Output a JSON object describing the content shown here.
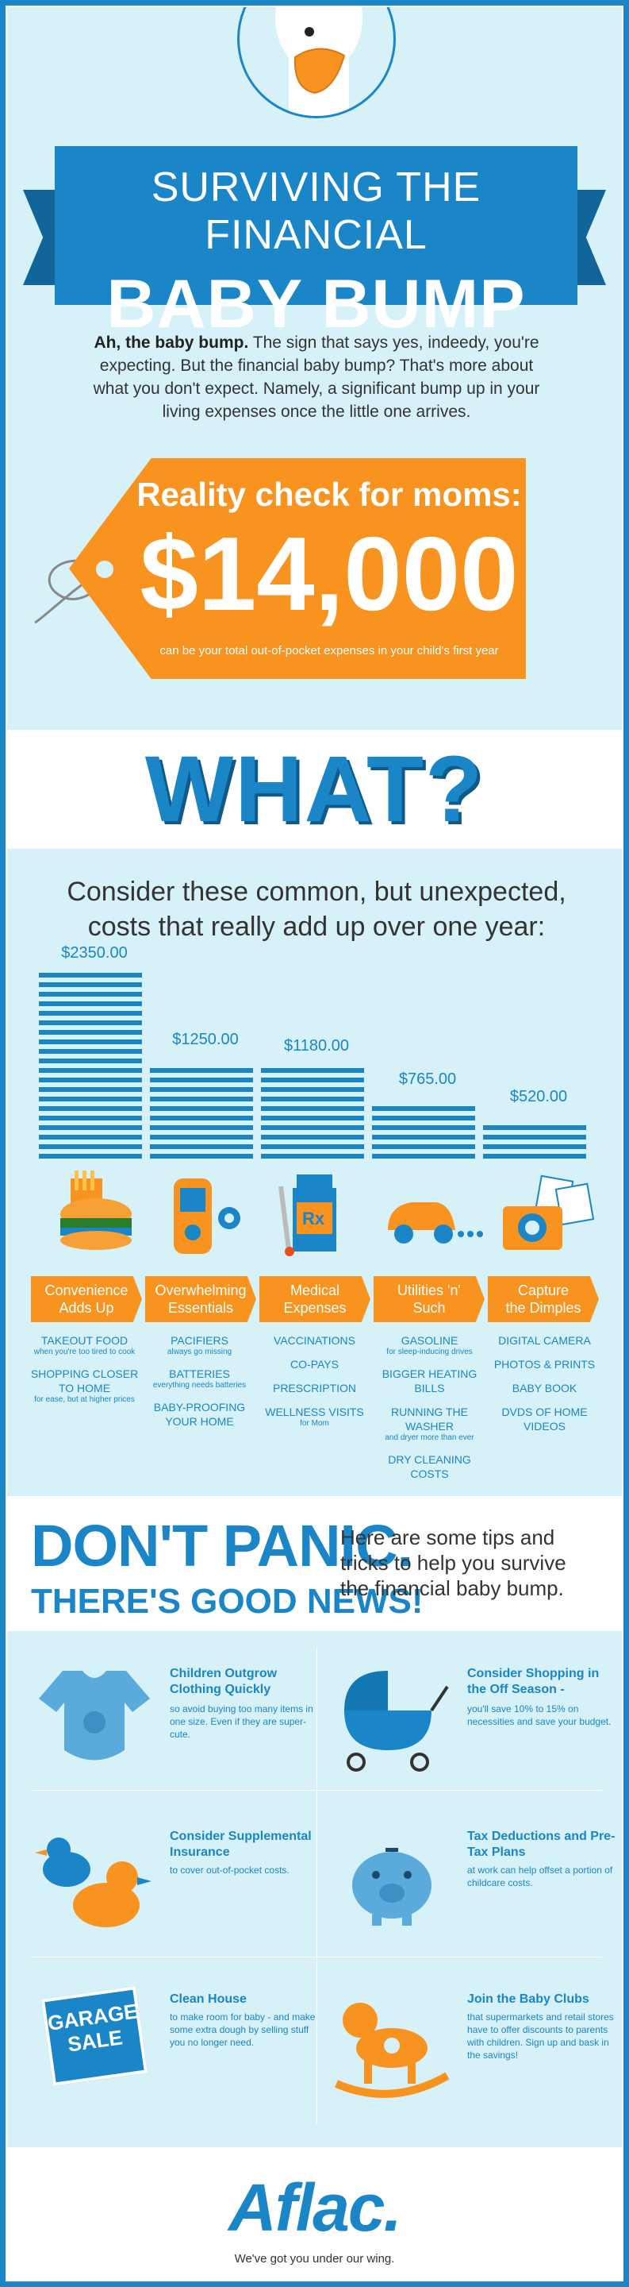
{
  "hero": {
    "title_line1": "SURVIVING THE FINANCIAL",
    "title_line2": "BABY BUMP",
    "intro_bold": "Ah, the baby bump.",
    "intro_rest": " The sign that says yes, indeedy, you're expecting. But the financial baby bump? That's more about what you don't expect. Namely, a significant bump up in your living expenses once the little one arrives."
  },
  "tag": {
    "heading": "Reality check for moms:",
    "amount": "$14,000",
    "subtext": "can be your total out-of-pocket expenses in your child's first year"
  },
  "what": {
    "label": "WHAT?"
  },
  "consider": {
    "text": "Consider these common, but unexpected, costs that really add up over one year:"
  },
  "chart_data": {
    "type": "bar",
    "categories": [
      "Convenience Adds Up",
      "Overwhelming Essentials",
      "Medical Expenses",
      "Utilities 'n' Such",
      "Capture the Dimples"
    ],
    "values": [
      2350,
      1250,
      1180,
      765,
      520
    ],
    "labels": [
      "$2350.00",
      "$1250.00",
      "$1180.00",
      "$765.00",
      "$520.00"
    ]
  },
  "categories": [
    {
      "name1": "Convenience",
      "name2": "Adds Up",
      "items": [
        {
          "t": "TAKEOUT FOOD",
          "s": "when you're too tired to cook"
        },
        {
          "t": "SHOPPING CLOSER TO HOME",
          "s": "for ease, but at higher prices"
        }
      ]
    },
    {
      "name1": "Overwhelming",
      "name2": "Essentials",
      "items": [
        {
          "t": "PACIFIERS",
          "s": "always go missing"
        },
        {
          "t": "BATTERIES",
          "s": "everything needs batteries"
        },
        {
          "t": "BABY-PROOFING YOUR HOME",
          "s": ""
        }
      ]
    },
    {
      "name1": "Medical",
      "name2": "Expenses",
      "items": [
        {
          "t": "VACCINATIONS",
          "s": ""
        },
        {
          "t": "CO-PAYS",
          "s": ""
        },
        {
          "t": "PRESCRIPTION",
          "s": ""
        },
        {
          "t": "WELLNESS VISITS",
          "s": "for Mom"
        }
      ]
    },
    {
      "name1": "Utilities 'n'",
      "name2": "Such",
      "items": [
        {
          "t": "GASOLINE",
          "s": "for sleep-inducing drives"
        },
        {
          "t": "BIGGER HEATING BILLS",
          "s": ""
        },
        {
          "t": "RUNNING THE WASHER",
          "s": "and dryer more than ever"
        },
        {
          "t": "DRY CLEANING COSTS",
          "s": ""
        }
      ]
    },
    {
      "name1": "Capture",
      "name2": "the Dimples",
      "items": [
        {
          "t": "DIGITAL CAMERA",
          "s": ""
        },
        {
          "t": "PHOTOS & PRINTS",
          "s": ""
        },
        {
          "t": "BABY BOOK",
          "s": ""
        },
        {
          "t": "DVDS OF HOME VIDEOS",
          "s": ""
        }
      ]
    }
  ],
  "panic": {
    "line1": "DON'T PANIC.",
    "line2": "THERE'S GOOD NEWS!",
    "text": "Here are some tips and tricks to help you survive the financial baby bump."
  },
  "tips": [
    {
      "title": "Children Outgrow Clothing Quickly",
      "desc": "so avoid buying too many items in one size. Even if they are super-cute.",
      "icon": "onesie-icon"
    },
    {
      "title": "Consider Shopping in the Off Season -",
      "desc": "you'll save 10% to 15% on necessities and save your budget.",
      "icon": "stroller-icon"
    },
    {
      "title": "Consider Supplemental Insurance",
      "desc": "to cover out-of-pocket costs.",
      "icon": "rubber-ducks-icon"
    },
    {
      "title": "Tax Deductions and Pre-Tax Plans",
      "desc": "at work can help offset a portion of childcare costs.",
      "icon": "piggy-bank-icon"
    },
    {
      "title": "Clean House",
      "desc": "to make room for baby - and make some extra dough by selling stuff you no longer need.",
      "icon": "garage-sale-sign-icon"
    },
    {
      "title": "Join the Baby Clubs",
      "desc": "that supermarkets and retail stores have to offer discounts to parents with children. Sign up and bask in the savings!",
      "icon": "rocking-horse-icon"
    }
  ],
  "garage_sign": {
    "line1": "GARAGE",
    "line2": "SALE"
  },
  "footer": {
    "logo": "Aflac.",
    "slogan": "We've got you under our wing."
  },
  "colors": {
    "blue": "#1a86c8",
    "orange": "#f7931e",
    "light": "#d6f1f8"
  }
}
